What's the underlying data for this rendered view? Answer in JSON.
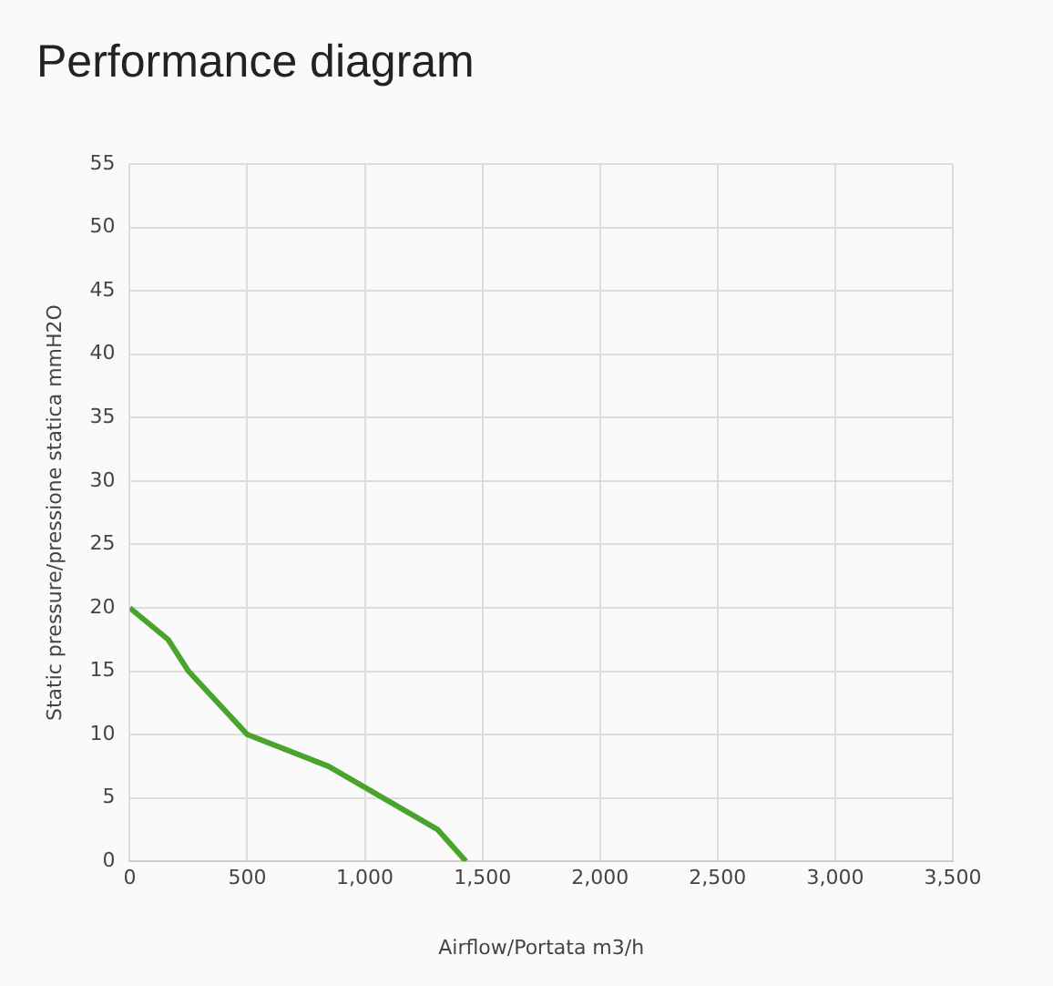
{
  "chart_data": {
    "type": "line",
    "title": "Performance diagram",
    "xlabel": "Airflow/Portata m3/h",
    "ylabel": "Static pressure/pressione statica mmH2O",
    "series": [
      {
        "color": "#4aa32c",
        "x": [
          0,
          163,
          250,
          500,
          845,
          1310,
          1430
        ],
        "values": [
          20,
          17.5,
          15,
          10,
          7.5,
          2.5,
          0
        ]
      }
    ],
    "xlim": [
      0,
      3500
    ],
    "xticks": [
      0,
      {
        "value": 500,
        "label": "500"
      },
      {
        "value": 1000,
        "label": "1,000"
      },
      {
        "value": 1500,
        "label": "1,500"
      },
      {
        "value": 2000,
        "label": "2,000"
      },
      {
        "value": 2500,
        "label": "2,500"
      },
      {
        "value": 3000,
        "label": "3,000"
      },
      {
        "value": 3500,
        "label": "3,500"
      }
    ],
    "ylim": [
      0,
      55
    ],
    "yticks": [
      0,
      5,
      10,
      15,
      20,
      25,
      30,
      35,
      40,
      45,
      50,
      55
    ],
    "grid": true,
    "legend": false,
    "marker": "none",
    "line_style": "solid"
  }
}
